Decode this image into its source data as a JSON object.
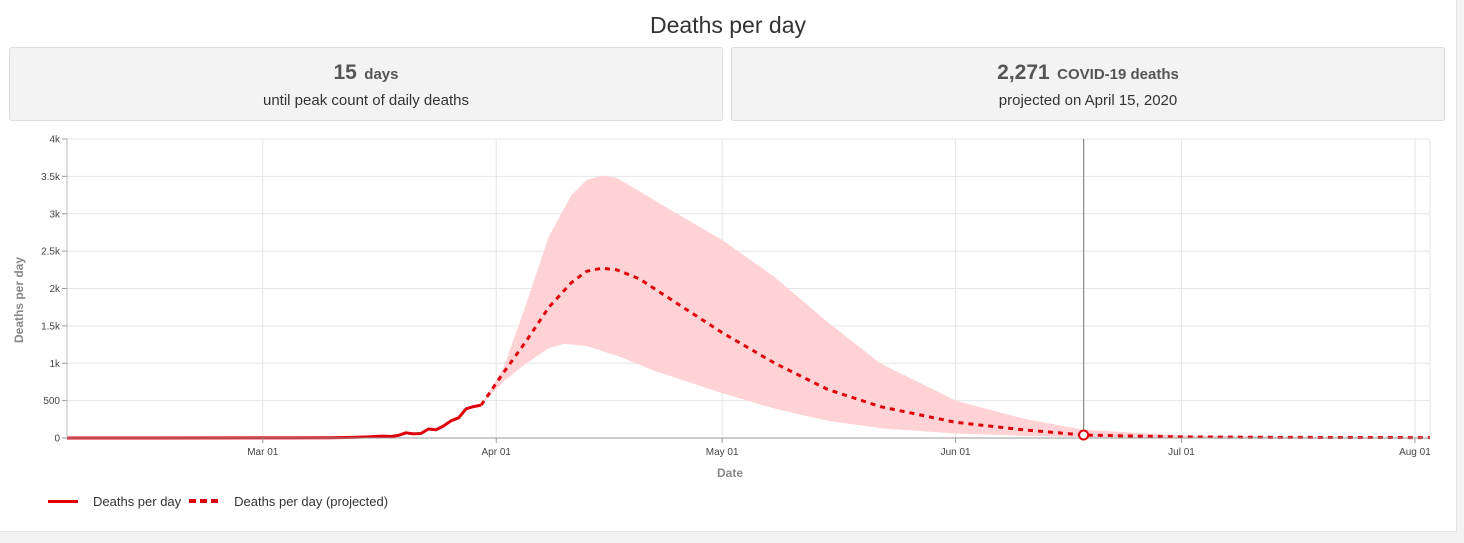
{
  "title": "Deaths per day",
  "stats": {
    "peak": {
      "value": "15",
      "unit": "days",
      "caption": "until peak count of daily deaths"
    },
    "projection": {
      "value": "2,271",
      "unit": "COVID-19 deaths",
      "caption": "projected on April 15, 2020"
    }
  },
  "legend": {
    "actual": "Deaths per day",
    "projected": "Deaths per day (projected)"
  },
  "colors": {
    "line": "#e0000b",
    "band": "#ffd3d6",
    "grid": "#e4e4e4",
    "marker": "#888888"
  },
  "chart_data": {
    "type": "line",
    "xlabel": "Date",
    "ylabel": "Deaths per day",
    "x_domain": [
      "2020-02-04",
      "2020-08-03"
    ],
    "ylim": [
      0,
      4000
    ],
    "y_ticks": [
      0,
      500,
      1000,
      1500,
      2000,
      2500,
      3000,
      3500,
      4000
    ],
    "y_tick_labels": [
      "0",
      "500",
      "1k",
      "1.5k",
      "2k",
      "2.5k",
      "3k",
      "3.5k",
      "4k"
    ],
    "x_ticks": [
      "2020-03-01",
      "2020-04-01",
      "2020-05-01",
      "2020-06-01",
      "2020-07-01",
      "2020-08-01"
    ],
    "x_tick_labels": [
      "Mar 01",
      "Apr 01",
      "May 01",
      "Jun 01",
      "Jul 01",
      "Aug 01"
    ],
    "marker_date": "2020-06-18",
    "marker_value": 40,
    "series": [
      {
        "name": "Deaths per day",
        "style": "solid",
        "points": [
          [
            "2020-02-04",
            0
          ],
          [
            "2020-02-15",
            0
          ],
          [
            "2020-02-28",
            1
          ],
          [
            "2020-03-05",
            2
          ],
          [
            "2020-03-10",
            4
          ],
          [
            "2020-03-13",
            8
          ],
          [
            "2020-03-15",
            15
          ],
          [
            "2020-03-17",
            25
          ],
          [
            "2020-03-18",
            20
          ],
          [
            "2020-03-19",
            35
          ],
          [
            "2020-03-20",
            70
          ],
          [
            "2020-03-21",
            55
          ],
          [
            "2020-03-22",
            60
          ],
          [
            "2020-03-23",
            120
          ],
          [
            "2020-03-24",
            110
          ],
          [
            "2020-03-25",
            160
          ],
          [
            "2020-03-26",
            230
          ],
          [
            "2020-03-27",
            270
          ],
          [
            "2020-03-28",
            390
          ],
          [
            "2020-03-29",
            420
          ],
          [
            "2020-03-30",
            440
          ]
        ]
      },
      {
        "name": "Deaths per day (projected)",
        "style": "dashed",
        "points": [
          [
            "2020-03-30",
            440
          ],
          [
            "2020-04-02",
            880
          ],
          [
            "2020-04-05",
            1300
          ],
          [
            "2020-04-08",
            1750
          ],
          [
            "2020-04-11",
            2080
          ],
          [
            "2020-04-13",
            2230
          ],
          [
            "2020-04-15",
            2271
          ],
          [
            "2020-04-17",
            2250
          ],
          [
            "2020-04-20",
            2130
          ],
          [
            "2020-04-25",
            1800
          ],
          [
            "2020-05-01",
            1410
          ],
          [
            "2020-05-08",
            1000
          ],
          [
            "2020-05-15",
            650
          ],
          [
            "2020-05-22",
            420
          ],
          [
            "2020-06-01",
            210
          ],
          [
            "2020-06-10",
            110
          ],
          [
            "2020-06-18",
            40
          ],
          [
            "2020-06-25",
            25
          ],
          [
            "2020-07-01",
            15
          ],
          [
            "2020-07-15",
            8
          ],
          [
            "2020-08-03",
            5
          ]
        ]
      }
    ],
    "band": {
      "name": "projection range",
      "upper": [
        [
          "2020-03-30",
          440
        ],
        [
          "2020-04-02",
          950
        ],
        [
          "2020-04-05",
          1800
        ],
        [
          "2020-04-08",
          2700
        ],
        [
          "2020-04-11",
          3250
        ],
        [
          "2020-04-13",
          3450
        ],
        [
          "2020-04-15",
          3510
        ],
        [
          "2020-04-17",
          3480
        ],
        [
          "2020-04-20",
          3300
        ],
        [
          "2020-04-25",
          3000
        ],
        [
          "2020-05-01",
          2650
        ],
        [
          "2020-05-08",
          2150
        ],
        [
          "2020-05-15",
          1550
        ],
        [
          "2020-05-22",
          1000
        ],
        [
          "2020-06-01",
          500
        ],
        [
          "2020-06-10",
          260
        ],
        [
          "2020-06-18",
          110
        ],
        [
          "2020-07-01",
          35
        ],
        [
          "2020-07-15",
          15
        ],
        [
          "2020-08-03",
          5
        ]
      ],
      "lower": [
        [
          "2020-03-30",
          440
        ],
        [
          "2020-04-02",
          760
        ],
        [
          "2020-04-05",
          1000
        ],
        [
          "2020-04-08",
          1200
        ],
        [
          "2020-04-10",
          1260
        ],
        [
          "2020-04-13",
          1230
        ],
        [
          "2020-04-17",
          1100
        ],
        [
          "2020-04-22",
          900
        ],
        [
          "2020-05-01",
          600
        ],
        [
          "2020-05-08",
          390
        ],
        [
          "2020-05-15",
          230
        ],
        [
          "2020-05-22",
          130
        ],
        [
          "2020-06-01",
          60
        ],
        [
          "2020-06-10",
          28
        ],
        [
          "2020-06-18",
          12
        ],
        [
          "2020-07-01",
          5
        ],
        [
          "2020-08-03",
          2
        ]
      ]
    }
  }
}
